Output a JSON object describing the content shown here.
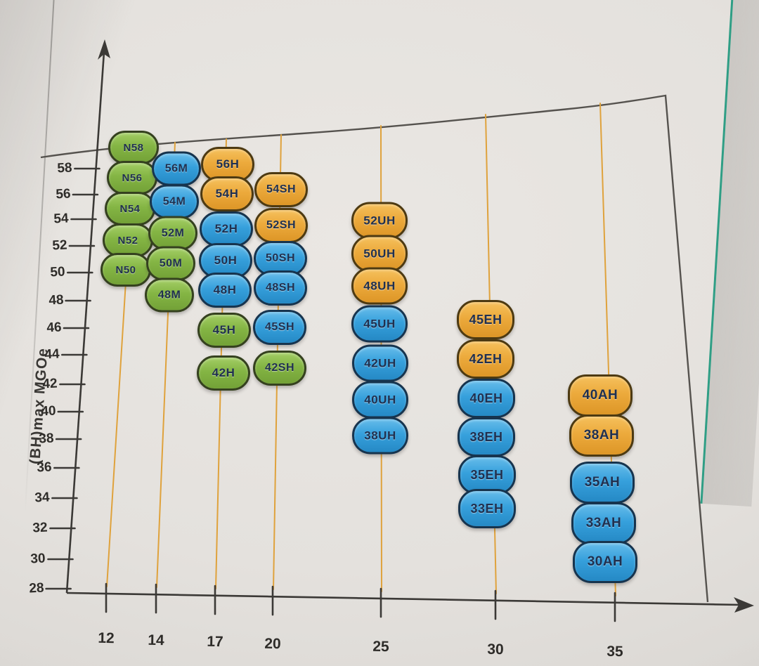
{
  "page": {
    "description": "Photographed printed chart of sintered NdFeB magnet grades grouped by coercivity series",
    "y_axis_title": "(BH)max MGOe"
  },
  "chart_data": {
    "type": "scatter",
    "title": "",
    "xlabel": "",
    "ylabel": "(BH)max MGOe",
    "x_ticks": [
      "12",
      "14",
      "17",
      "20",
      "25",
      "30",
      "35"
    ],
    "y_ticks": [
      "58",
      "56",
      "54",
      "52",
      "50",
      "48",
      "46",
      "44",
      "42",
      "40",
      "38",
      "36",
      "34",
      "32",
      "30",
      "28"
    ],
    "xlim": [
      10,
      37
    ],
    "ylim": [
      28,
      60
    ],
    "grid": "vertical orange guide line at each x tick, capped by a curved envelope line across the top",
    "legend_position": "none",
    "columns": [
      {
        "x": 12,
        "grades": [
          {
            "label": "N58",
            "value": 58,
            "color": "green"
          },
          {
            "label": "N56",
            "value": 56,
            "color": "green"
          },
          {
            "label": "N54",
            "value": 54,
            "color": "green"
          },
          {
            "label": "N52",
            "value": 52,
            "color": "green"
          },
          {
            "label": "N50",
            "value": 50,
            "color": "green"
          }
        ]
      },
      {
        "x": 14,
        "grades": [
          {
            "label": "56M",
            "value": 56,
            "color": "blue"
          },
          {
            "label": "54M",
            "value": 54,
            "color": "blue"
          },
          {
            "label": "52M",
            "value": 52,
            "color": "green"
          },
          {
            "label": "50M",
            "value": 50,
            "color": "green"
          },
          {
            "label": "48M",
            "value": 48,
            "color": "green"
          }
        ]
      },
      {
        "x": 17,
        "grades": [
          {
            "label": "56H",
            "value": 56,
            "color": "orange"
          },
          {
            "label": "54H",
            "value": 54,
            "color": "orange"
          },
          {
            "label": "52H",
            "value": 52,
            "color": "blue"
          },
          {
            "label": "50H",
            "value": 50,
            "color": "blue"
          },
          {
            "label": "48H",
            "value": 48,
            "color": "blue"
          },
          {
            "label": "45H",
            "value": 45,
            "color": "green"
          },
          {
            "label": "42H",
            "value": 42,
            "color": "green"
          }
        ]
      },
      {
        "x": 20,
        "grades": [
          {
            "label": "54SH",
            "value": 54,
            "color": "orange"
          },
          {
            "label": "52SH",
            "value": 52,
            "color": "orange"
          },
          {
            "label": "50SH",
            "value": 50,
            "color": "blue"
          },
          {
            "label": "48SH",
            "value": 48,
            "color": "blue"
          },
          {
            "label": "45SH",
            "value": 45,
            "color": "blue"
          },
          {
            "label": "42SH",
            "value": 42,
            "color": "green"
          }
        ]
      },
      {
        "x": 25,
        "grades": [
          {
            "label": "52UH",
            "value": 52,
            "color": "orange"
          },
          {
            "label": "50UH",
            "value": 50,
            "color": "orange"
          },
          {
            "label": "48UH",
            "value": 48,
            "color": "orange"
          },
          {
            "label": "45UH",
            "value": 45,
            "color": "blue"
          },
          {
            "label": "42UH",
            "value": 42,
            "color": "blue"
          },
          {
            "label": "40UH",
            "value": 40,
            "color": "blue"
          },
          {
            "label": "38UH",
            "value": 38,
            "color": "blue"
          }
        ]
      },
      {
        "x": 30,
        "grades": [
          {
            "label": "45EH",
            "value": 45,
            "color": "orange"
          },
          {
            "label": "42EH",
            "value": 42,
            "color": "orange"
          },
          {
            "label": "40EH",
            "value": 40,
            "color": "blue"
          },
          {
            "label": "38EH",
            "value": 38,
            "color": "blue"
          },
          {
            "label": "35EH",
            "value": 35,
            "color": "blue"
          },
          {
            "label": "33EH",
            "value": 33,
            "color": "blue"
          }
        ]
      },
      {
        "x": 35,
        "grades": [
          {
            "label": "40AH",
            "value": 40,
            "color": "orange"
          },
          {
            "label": "38AH",
            "value": 38,
            "color": "orange"
          },
          {
            "label": "35AH",
            "value": 35,
            "color": "blue"
          },
          {
            "label": "33AH",
            "value": 33,
            "color": "blue"
          },
          {
            "label": "30AH",
            "value": 30,
            "color": "blue"
          }
        ]
      }
    ]
  },
  "palette": {
    "green": "#84b544",
    "blue": "#36a0dc",
    "orange": "#ecaa3c",
    "guide_line": "#dfa23c",
    "axis": "#3b3936",
    "envelope": "#55524e",
    "paper": "#e4e1dd",
    "page_edge_teal": "#2f9e85"
  }
}
